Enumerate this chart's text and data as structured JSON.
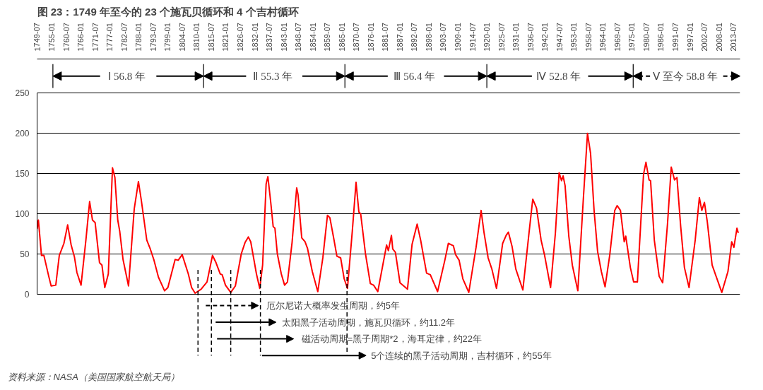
{
  "chart_data": {
    "type": "line",
    "title": "图 23：1749 年至今的 23 个施瓦贝循环和 4 个吉村循环",
    "annotations": [
      "Ⅰ  56.8 年",
      "Ⅱ  55.3 年",
      "Ⅲ  56.4 年",
      "Ⅳ  52.8 年",
      "Ⅴ  至今 58.8 年",
      "厄尔尼诺大概率发生周期，约5年",
      "太阳黑子活动周期，施瓦贝循环，约11.2年",
      "磁活动周期=黑子周期*2，海耳定律，约22年",
      "5个连续的黑子活动周期，吉村循环，约55年",
      "资料来源：NASA（美国国家航空航天局）"
    ],
    "x": [
      "1749-07",
      "1750-01",
      "1751-03",
      "1752-02",
      "1753-12",
      "1754-11",
      "1756-08",
      "1757-12",
      "1759-09",
      "1761-02",
      "1762-06",
      "1763-09",
      "1764-08",
      "1766-03",
      "1768-01",
      "1769-06",
      "1770-07",
      "1771-07",
      "1773-03",
      "1774-02",
      "1775-03",
      "1776-07",
      "1778-02",
      "1779-01",
      "1780-02",
      "1780-11",
      "1782-02",
      "1784-03",
      "1786-05",
      "1787-12",
      "1789-01",
      "1791-02",
      "1792-06",
      "1793-11",
      "1795-07",
      "1797-11",
      "1799-02",
      "1801-11",
      "1803-01",
      "1804-07",
      "1806-11",
      "1808-02",
      "1809-06",
      "1811-09",
      "1813-12",
      "1816-01",
      "1817-05",
      "1818-12",
      "1819-09",
      "1820-12",
      "1822-12",
      "1824-09",
      "1826-12",
      "1828-05",
      "1829-08",
      "1830-07",
      "1832-09",
      "1833-12",
      "1835-01",
      "1836-05",
      "1837-01",
      "1838-02",
      "1839-01",
      "1839-09",
      "1840-08",
      "1842-02",
      "1843-05",
      "1844-06",
      "1846-03",
      "1847-12",
      "1848-06",
      "1849-11",
      "1851-02",
      "1852-01",
      "1853-11",
      "1855-12",
      "1857-11",
      "1859-08",
      "1860-07",
      "1861-12",
      "1863-03",
      "1864-08",
      "1865-12",
      "1867-03",
      "1869-01",
      "1870-06",
      "1871-07",
      "1872-03",
      "1874-01",
      "1875-11",
      "1877-02",
      "1878-09",
      "1881-02",
      "1882-01",
      "1882-09",
      "1883-11",
      "1884-05",
      "1885-05",
      "1887-02",
      "1889-12",
      "1891-09",
      "1893-08",
      "1894-12",
      "1897-03",
      "1898-08",
      "1901-05",
      "1904-02",
      "1905-06",
      "1907-05",
      "1908-03",
      "1909-07",
      "1910-12",
      "1913-03",
      "1915-12",
      "1917-11",
      "1918-12",
      "1920-07",
      "1921-12",
      "1923-09",
      "1926-01",
      "1927-05",
      "1928-03",
      "1929-08",
      "1931-01",
      "1933-09",
      "1936-01",
      "1937-06",
      "1938-11",
      "1940-08",
      "1941-12",
      "1944-03",
      "1946-01",
      "1947-06",
      "1948-05",
      "1948-12",
      "1949-09",
      "1951-02",
      "1952-06",
      "1954-07",
      "1956-08",
      "1958-03",
      "1959-05",
      "1960-09",
      "1962-01",
      "1963-06",
      "1964-11",
      "1966-08",
      "1968-07",
      "1969-06",
      "1970-09",
      "1972-02",
      "1972-09",
      "1974-06",
      "1975-09",
      "1977-02",
      "1979-06",
      "1980-05",
      "1981-07",
      "1982-02",
      "1983-07",
      "1985-05",
      "1986-09",
      "1988-07",
      "1989-12",
      "1991-03",
      "1992-02",
      "1993-07",
      "1994-12",
      "1996-09",
      "1999-01",
      "2000-08",
      "2001-07",
      "2002-07",
      "2003-08",
      "2005-06",
      "2009-02",
      "2011-06",
      "2012-11",
      "2013-09",
      "2014-11",
      "2015-05"
    ],
    "series": [
      {
        "color": "#ff0000",
        "values": [
          81,
          92,
          48,
          48,
          22,
          10,
          11,
          48,
          63,
          86,
          61,
          46,
          27,
          11,
          67,
          115,
          92,
          89,
          39,
          36,
          8,
          25,
          157,
          145,
          92,
          78,
          43,
          10,
          106,
          140,
          117,
          67,
          56,
          42,
          21,
          4,
          8,
          43,
          42,
          49,
          25,
          8,
          1,
          6,
          15,
          48,
          39,
          25,
          24,
          11,
          2,
          10,
          50,
          64,
          71,
          65,
          25,
          7,
          36,
          137,
          146,
          114,
          84,
          82,
          50,
          25,
          11,
          15,
          64,
          132,
          124,
          70,
          65,
          57,
          28,
          3,
          45,
          98,
          95,
          70,
          47,
          45,
          19,
          7,
          78,
          139,
          102,
          100,
          50,
          13,
          11,
          3,
          45,
          61,
          54,
          73,
          56,
          52,
          14,
          6,
          62,
          87,
          67,
          26,
          24,
          3,
          42,
          63,
          60,
          49,
          42,
          19,
          2,
          58,
          104,
          77,
          45,
          31,
          7,
          63,
          73,
          77,
          59,
          31,
          5,
          76,
          118,
          107,
          67,
          48,
          8,
          76,
          151,
          141,
          147,
          135,
          72,
          36,
          4,
          118,
          200,
          175,
          104,
          53,
          28,
          9,
          48,
          104,
          110,
          104,
          65,
          72,
          33,
          15,
          15,
          149,
          164,
          142,
          141,
          67,
          22,
          14,
          87,
          158,
          142,
          145,
          84,
          33,
          8,
          67,
          120,
          104,
          114,
          90,
          36,
          2,
          28,
          65,
          58,
          82,
          76
        ]
      }
    ],
    "xlim": [
      "1749-07",
      "2016-01"
    ],
    "ylim": [
      0,
      250
    ],
    "xticks": [
      "1749-07",
      "1755-01",
      "1760-07",
      "1766-01",
      "1771-07",
      "1777-01",
      "1782-07",
      "1788-01",
      "1793-07",
      "1799-01",
      "1804-07",
      "1810-01",
      "1815-07",
      "1821-01",
      "1826-07",
      "1832-01",
      "1837-07",
      "1843-01",
      "1848-07",
      "1854-01",
      "1859-07",
      "1865-01",
      "1870-07",
      "1876-01",
      "1881-07",
      "1887-01",
      "1892-07",
      "1898-01",
      "1903-07",
      "1909-01",
      "1914-07",
      "1920-01",
      "1925-07",
      "1931-01",
      "1936-07",
      "1942-01",
      "1947-07",
      "1953-01",
      "1958-07",
      "1964-01",
      "1969-07",
      "1975-01",
      "1980-07",
      "1986-01",
      "1991-07",
      "1997-01",
      "2002-07",
      "2008-01",
      "2013-07"
    ],
    "yticks": [
      0,
      50,
      100,
      150,
      200,
      250
    ],
    "grid": "y",
    "ref_lines": [
      {
        "axis": "x",
        "value": "1810-07",
        "color": "#000000",
        "line_style": "dashed"
      },
      {
        "axis": "x",
        "value": "1815-08",
        "color": "#000000",
        "line_style": "dashed"
      },
      {
        "axis": "x",
        "value": "1822-12",
        "color": "#000000",
        "line_style": "dashed"
      },
      {
        "axis": "x",
        "value": "1834-03",
        "color": "#000000",
        "line_style": "dashed"
      },
      {
        "axis": "x",
        "value": "1867-01",
        "color": "#000000",
        "line_style": "dashed"
      }
    ]
  }
}
